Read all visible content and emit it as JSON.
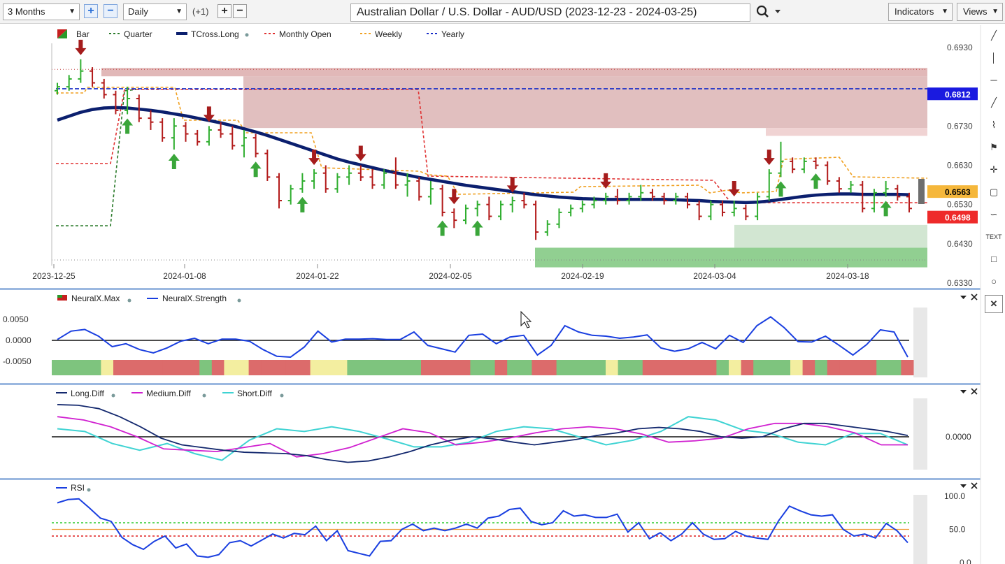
{
  "toolbar": {
    "period": "3 Months",
    "interval": "Daily",
    "offset": "(+1)",
    "title": "Australian Dollar / U.S. Dollar - AUD/USD (2023-12-23 - 2024-03-25)",
    "indicators_label": "Indicators",
    "views_label": "Views",
    "search_icon": "search-icon"
  },
  "right_tools": [
    "line-tool-icon",
    "vertical-line-icon",
    "horizontal-line-icon",
    "ray-icon",
    "fib-icon",
    "marker-icon",
    "crosshair-icon",
    "note-icon",
    "curve-icon",
    "text-icon",
    "rectangle-icon",
    "ellipse-icon",
    "close-icon"
  ],
  "right_tools_text": "TEXT",
  "colors": {
    "up": "#2fae2f",
    "down": "#b31b1b",
    "tcross": "#0b1f6e",
    "monthly": "#e03030",
    "weekly": "#f0a020",
    "yearly": "#1a2ec8",
    "quarter": "#2a7a2a",
    "strength": "#1a3fe0"
  },
  "chart_data": [
    {
      "type": "candlestick",
      "title": "Australian Dollar / U.S. Dollar - AUD/USD (2023-12-23 - 2024-03-25)",
      "legend": [
        "Bar",
        "Quarter",
        "TCross.Long",
        "Monthly Open",
        "Weekly",
        "Yearly"
      ],
      "x_ticks": [
        "2023-12-25",
        "2024-01-08",
        "2024-01-22",
        "2024-02-05",
        "2024-02-19",
        "2024-03-04",
        "2024-03-18"
      ],
      "y_ticks": [
        "0.6930",
        "0.6730",
        "0.6630",
        "0.6530",
        "0.6430",
        "0.6330"
      ],
      "ylim": [
        0.633,
        0.693
      ],
      "price_labels": {
        "yearly": "0.6812",
        "weekly": "0.6563",
        "monthly": "0.6498"
      },
      "candles": [
        [
          0.682,
          0.684,
          0.681,
          0.683
        ],
        [
          0.683,
          0.686,
          0.682,
          0.685
        ],
        [
          0.685,
          0.69,
          0.684,
          0.687
        ],
        [
          0.687,
          0.688,
          0.683,
          0.684
        ],
        [
          0.684,
          0.685,
          0.68,
          0.681
        ],
        [
          0.681,
          0.682,
          0.676,
          0.677
        ],
        [
          0.677,
          0.683,
          0.676,
          0.68
        ],
        [
          0.68,
          0.681,
          0.674,
          0.675
        ],
        [
          0.675,
          0.677,
          0.672,
          0.674
        ],
        [
          0.674,
          0.675,
          0.669,
          0.67
        ],
        [
          0.67,
          0.675,
          0.667,
          0.673
        ],
        [
          0.673,
          0.674,
          0.669,
          0.671
        ],
        [
          0.671,
          0.672,
          0.668,
          0.669
        ],
        [
          0.669,
          0.673,
          0.668,
          0.672
        ],
        [
          0.672,
          0.674,
          0.67,
          0.671
        ],
        [
          0.671,
          0.673,
          0.667,
          0.668
        ],
        [
          0.668,
          0.672,
          0.665,
          0.67
        ],
        [
          0.67,
          0.671,
          0.665,
          0.666
        ],
        [
          0.666,
          0.667,
          0.659,
          0.66
        ],
        [
          0.66,
          0.661,
          0.652,
          0.654
        ],
        [
          0.654,
          0.658,
          0.653,
          0.657
        ],
        [
          0.657,
          0.661,
          0.656,
          0.659
        ],
        [
          0.659,
          0.662,
          0.657,
          0.661
        ],
        [
          0.661,
          0.663,
          0.656,
          0.657
        ],
        [
          0.657,
          0.661,
          0.656,
          0.66
        ],
        [
          0.66,
          0.663,
          0.658,
          0.661
        ],
        [
          0.661,
          0.663,
          0.659,
          0.66
        ],
        [
          0.66,
          0.662,
          0.657,
          0.658
        ],
        [
          0.658,
          0.662,
          0.657,
          0.661
        ],
        [
          0.661,
          0.665,
          0.657,
          0.658
        ],
        [
          0.658,
          0.661,
          0.655,
          0.659
        ],
        [
          0.659,
          0.66,
          0.654,
          0.655
        ],
        [
          0.655,
          0.659,
          0.653,
          0.657
        ],
        [
          0.657,
          0.658,
          0.65,
          0.651
        ],
        [
          0.651,
          0.652,
          0.647,
          0.649
        ],
        [
          0.649,
          0.653,
          0.648,
          0.652
        ],
        [
          0.652,
          0.654,
          0.65,
          0.653
        ],
        [
          0.653,
          0.655,
          0.649,
          0.65
        ],
        [
          0.65,
          0.654,
          0.649,
          0.653
        ],
        [
          0.653,
          0.655,
          0.651,
          0.654
        ],
        [
          0.654,
          0.656,
          0.652,
          0.653
        ],
        [
          0.653,
          0.654,
          0.644,
          0.646
        ],
        [
          0.646,
          0.649,
          0.645,
          0.648
        ],
        [
          0.648,
          0.652,
          0.647,
          0.651
        ],
        [
          0.651,
          0.653,
          0.65,
          0.652
        ],
        [
          0.652,
          0.654,
          0.651,
          0.653
        ],
        [
          0.653,
          0.655,
          0.652,
          0.654
        ],
        [
          0.654,
          0.656,
          0.653,
          0.655
        ],
        [
          0.655,
          0.657,
          0.653,
          0.654
        ],
        [
          0.654,
          0.656,
          0.653,
          0.655
        ],
        [
          0.655,
          0.658,
          0.654,
          0.656
        ],
        [
          0.656,
          0.657,
          0.654,
          0.655
        ],
        [
          0.655,
          0.656,
          0.653,
          0.654
        ],
        [
          0.654,
          0.656,
          0.653,
          0.655
        ],
        [
          0.655,
          0.656,
          0.652,
          0.653
        ],
        [
          0.653,
          0.654,
          0.649,
          0.65
        ],
        [
          0.65,
          0.654,
          0.649,
          0.653
        ],
        [
          0.653,
          0.654,
          0.65,
          0.651
        ],
        [
          0.651,
          0.654,
          0.65,
          0.652
        ],
        [
          0.652,
          0.653,
          0.649,
          0.65
        ],
        [
          0.65,
          0.656,
          0.649,
          0.655
        ],
        [
          0.655,
          0.662,
          0.654,
          0.661
        ],
        [
          0.661,
          0.669,
          0.66,
          0.664
        ],
        [
          0.664,
          0.665,
          0.661,
          0.662
        ],
        [
          0.662,
          0.665,
          0.661,
          0.664
        ],
        [
          0.664,
          0.665,
          0.662,
          0.663
        ],
        [
          0.663,
          0.664,
          0.658,
          0.659
        ],
        [
          0.659,
          0.66,
          0.656,
          0.657
        ],
        [
          0.657,
          0.659,
          0.656,
          0.658
        ],
        [
          0.658,
          0.659,
          0.651,
          0.652
        ],
        [
          0.652,
          0.657,
          0.651,
          0.656
        ],
        [
          0.656,
          0.659,
          0.655,
          0.657
        ],
        [
          0.657,
          0.658,
          0.654,
          0.655
        ],
        [
          0.655,
          0.656,
          0.651,
          0.652
        ]
      ],
      "tcross_long": [
        0.6745,
        0.6755,
        0.6765,
        0.6772,
        0.6776,
        0.6777,
        0.6776,
        0.6773,
        0.677,
        0.6766,
        0.6761,
        0.6756,
        0.675,
        0.6744,
        0.6738,
        0.6731,
        0.6723,
        0.6715,
        0.6706,
        0.6696,
        0.6686,
        0.6676,
        0.6666,
        0.6656,
        0.6646,
        0.6638,
        0.6631,
        0.6624,
        0.6617,
        0.6611,
        0.6605,
        0.6599,
        0.6594,
        0.6589,
        0.6584,
        0.6579,
        0.6575,
        0.6571,
        0.6567,
        0.6563,
        0.6559,
        0.6555,
        0.6552,
        0.6549,
        0.6547,
        0.6545,
        0.6544,
        0.6543,
        0.6543,
        0.6543,
        0.6543,
        0.6543,
        0.6543,
        0.6542,
        0.6541,
        0.654,
        0.6538,
        0.6537,
        0.6536,
        0.6535,
        0.6536,
        0.6539,
        0.6543,
        0.6547,
        0.6551,
        0.6554,
        0.6556,
        0.6557,
        0.6557,
        0.6556,
        0.6556,
        0.6556,
        0.6556,
        0.6555
      ],
      "up_arrows": [
        6,
        10,
        17,
        21,
        33,
        36,
        62,
        65,
        71
      ],
      "down_arrows": [
        2,
        13,
        22,
        26,
        34,
        39,
        47,
        58,
        61
      ],
      "zones": [
        {
          "name": "resistance",
          "from": 0.6705,
          "to": 0.6878
        },
        {
          "name": "support",
          "from": 0.637,
          "to": 0.642
        }
      ]
    },
    {
      "type": "line",
      "legend": [
        "NeuralX.Max",
        "NeuralX.Strength"
      ],
      "y_ticks": [
        "0.0050",
        "0.0000",
        "-0.0050"
      ],
      "ylim": [
        -0.0065,
        0.0065
      ],
      "strength": [
        0.0002,
        0.0022,
        0.0026,
        0.001,
        -0.0015,
        -0.0008,
        -0.0022,
        -0.003,
        -0.0018,
        -0.0002,
        0.0005,
        -0.0008,
        0.0003,
        0.0003,
        -0.0002,
        -0.0022,
        -0.0038,
        -0.004,
        -0.0016,
        0.0022,
        -0.0004,
        0.0003,
        0.0003,
        0.0004,
        0.0002,
        0.0002,
        0.002,
        -0.0012,
        -0.002,
        -0.0028,
        0.0012,
        0.0015,
        -0.0008,
        0.0008,
        0.0012,
        -0.0035,
        -0.0012,
        0.0035,
        0.002,
        0.0012,
        0.001,
        0.0005,
        0.0008,
        0.0013,
        -0.0018,
        -0.0026,
        -0.002,
        -0.0005,
        -0.002,
        0.0012,
        -0.0005,
        0.0035,
        0.0056,
        0.003,
        -0.0003,
        -0.0004,
        0.001,
        -0.0012,
        -0.0035,
        -0.001,
        0.0025,
        0.002,
        -0.004
      ],
      "max_colors": [
        "g",
        "g",
        "g",
        "g",
        "y",
        "r",
        "r",
        "r",
        "r",
        "r",
        "r",
        "r",
        "g",
        "r",
        "y",
        "y",
        "r",
        "r",
        "r",
        "r",
        "r",
        "y",
        "y",
        "y",
        "g",
        "g",
        "g",
        "g",
        "g",
        "g",
        "r",
        "r",
        "r",
        "r",
        "g",
        "g",
        "r",
        "g",
        "g",
        "r",
        "r",
        "g",
        "g",
        "g",
        "g",
        "y",
        "g",
        "g",
        "r",
        "r",
        "r",
        "r",
        "r",
        "r",
        "g",
        "y",
        "r",
        "g",
        "g",
        "g",
        "y",
        "r",
        "g",
        "r",
        "r",
        "r",
        "r",
        "g",
        "g",
        "r"
      ]
    },
    {
      "type": "line",
      "legend": [
        "Long.Diff",
        "Medium.Diff",
        "Short.Diff"
      ],
      "y_ticks": [
        "0.0000"
      ],
      "ylim": [
        -0.005,
        0.006
      ],
      "long": [
        0.0048,
        0.0047,
        0.0042,
        0.003,
        0.0015,
        -0.0002,
        -0.0012,
        -0.0016,
        -0.002,
        -0.0023,
        -0.0024,
        -0.0025,
        -0.0028,
        -0.0034,
        -0.0038,
        -0.0036,
        -0.003,
        -0.0022,
        -0.0012,
        -0.0005,
        0.0,
        -0.0003,
        -0.0008,
        -0.0012,
        -0.0008,
        -0.0004,
        0.0002,
        0.0006,
        0.0012,
        0.0014,
        0.0012,
        0.0008,
        0.0,
        -0.0002,
        0.0,
        0.0012,
        0.002,
        0.002,
        0.0016,
        0.0012,
        0.0008,
        0.0002
      ],
      "medium": [
        0.003,
        0.0025,
        0.0015,
        0.0,
        -0.0018,
        -0.002,
        -0.0022,
        -0.0016,
        -0.001,
        -0.003,
        -0.0025,
        -0.0016,
        -0.0002,
        0.0012,
        0.0006,
        -0.0012,
        -0.0008,
        -0.0002,
        0.0006,
        0.0012,
        0.0015,
        0.0012,
        0.0004,
        -0.0008,
        -0.0006,
        -0.0002,
        0.0012,
        0.002,
        0.002,
        0.0015,
        0.0006,
        -0.0012,
        -0.0012
      ],
      "short": [
        0.0012,
        0.0008,
        -0.001,
        -0.002,
        -0.001,
        -0.0025,
        -0.0035,
        -0.0005,
        0.0012,
        0.0008,
        0.0015,
        0.0008,
        -0.0003,
        -0.0015,
        -0.0015,
        -0.0008,
        0.0008,
        0.0015,
        0.0012,
        0.0,
        -0.0012,
        -0.0005,
        0.0008,
        0.003,
        0.0025,
        0.001,
        0.0005,
        -0.0008,
        -0.0012,
        0.0005,
        0.0005,
        -0.0012
      ]
    },
    {
      "type": "line",
      "legend": [
        "RSI"
      ],
      "y_ticks": [
        "100.0",
        "50.0",
        "0.0"
      ],
      "ylim": [
        0,
        100
      ],
      "levels": [
        60,
        50,
        40
      ],
      "rsi": [
        90,
        95,
        96,
        82,
        67,
        62,
        38,
        27,
        20,
        32,
        40,
        22,
        28,
        10,
        8,
        12,
        30,
        33,
        25,
        34,
        43,
        37,
        44,
        42,
        55,
        33,
        48,
        18,
        14,
        10,
        32,
        33,
        50,
        58,
        48,
        52,
        48,
        52,
        58,
        52,
        67,
        70,
        80,
        82,
        62,
        57,
        60,
        78,
        70,
        72,
        68,
        68,
        73,
        46,
        60,
        36,
        45,
        33,
        43,
        60,
        43,
        35,
        36,
        47,
        40,
        37,
        35,
        63,
        85,
        78,
        72,
        70,
        72,
        50,
        40,
        43,
        37,
        59,
        48,
        30
      ]
    }
  ]
}
